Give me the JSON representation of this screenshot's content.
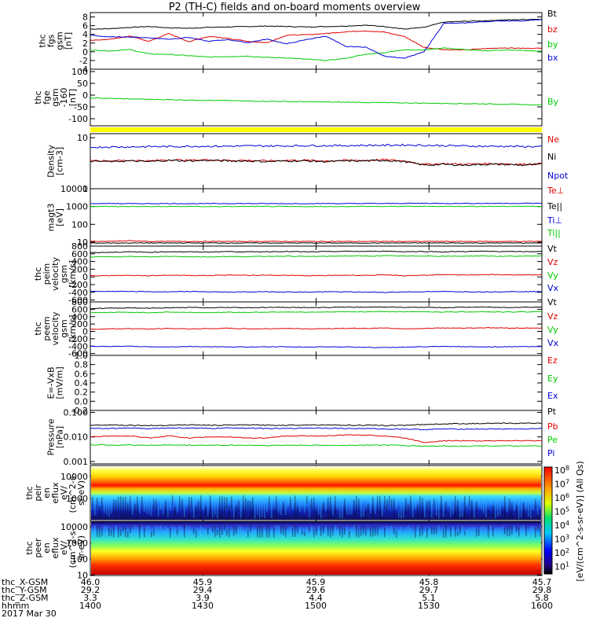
{
  "title": "P2 (TH-C) fields and on-board moments overview",
  "colors": {
    "black": "#000000",
    "red": "#e00000",
    "green": "#00cc00",
    "blue": "#0000d8",
    "yellow": "#ffff00"
  },
  "chart_data": [
    {
      "type": "line",
      "name": "fgs",
      "ylabel": [
        "thc",
        "fgs",
        "gsm",
        "[nT]"
      ],
      "ylim": [
        -4,
        9
      ],
      "yticks": [
        "8",
        "6",
        "4",
        "2",
        "0",
        "-2",
        "-4"
      ],
      "series": [
        {
          "name": "Bt",
          "color": "black",
          "values": [
            5.2,
            5.3,
            5.6,
            5.8,
            5.5,
            5.4,
            5.6,
            5.7,
            5.8,
            5.9,
            5.8,
            5.7,
            5.8,
            5.9,
            6.1,
            5.8,
            5.2,
            5.6,
            6.8,
            7.0,
            7.1,
            7.3,
            7.4,
            7.5
          ]
        },
        {
          "name": "bz",
          "color": "red",
          "values": [
            2.6,
            2.9,
            3.6,
            2.4,
            4.2,
            2.3,
            3.5,
            3.1,
            2.4,
            2.1,
            3.8,
            3.9,
            4.2,
            4.6,
            4.8,
            4.5,
            3.5,
            1.0,
            0.5,
            0.4,
            0.7,
            0.9,
            0.8,
            0.8
          ]
        },
        {
          "name": "by",
          "color": "green",
          "values": [
            0.4,
            0.2,
            0.5,
            -0.5,
            -0.6,
            -0.9,
            -1.2,
            -1.1,
            -1.0,
            -1.3,
            -1.4,
            -1.7,
            -2.0,
            -1.5,
            -0.6,
            -0.2,
            0.5,
            0.4,
            0.9,
            0.5,
            0.2,
            0.4,
            0.3,
            0.1
          ]
        },
        {
          "name": "bx",
          "color": "blue",
          "values": [
            3.8,
            3.4,
            3.4,
            3.2,
            2.9,
            3.3,
            2.4,
            2.8,
            2.1,
            2.9,
            1.8,
            2.8,
            3.6,
            1.2,
            1.1,
            -1.0,
            -1.5,
            0.0,
            6.5,
            6.6,
            6.9,
            7.1,
            7.1,
            7.4
          ]
        }
      ]
    },
    {
      "type": "line",
      "name": "fge_by",
      "ylabel": [
        "thc",
        "fge",
        "gsm",
        "-160",
        "[nT]"
      ],
      "ylim": [
        -130,
        110
      ],
      "yticks": [
        "100",
        "50",
        "0",
        "-50",
        "-100"
      ],
      "series": [
        {
          "name": "By",
          "color": "green",
          "values": [
            -12,
            -14,
            -16,
            -18,
            -19,
            -21,
            -22,
            -23,
            -25,
            -26,
            -27,
            -28,
            -29,
            -30,
            -31,
            -32,
            -33,
            -34,
            -35,
            -36,
            -37,
            -38,
            -40,
            -42
          ]
        }
      ]
    },
    {
      "type": "line",
      "name": "density",
      "scale": "log",
      "ylabel": [
        "Density",
        "[cm-3]"
      ],
      "ylim": [
        1,
        12
      ],
      "yticks": [
        "10",
        "1"
      ],
      "series": [
        {
          "name": "Ne",
          "color": "red",
          "values": [
            3.6,
            3.5,
            3.6,
            3.5,
            3.7,
            3.6,
            3.7,
            3.6,
            3.6,
            3.5,
            3.6,
            3.6,
            3.5,
            3.6,
            3.6,
            3.7,
            3.5,
            3.0,
            3.1,
            3.0,
            3.1,
            3.1,
            3.0,
            3.1
          ]
        },
        {
          "name": "Ni",
          "color": "black",
          "values": [
            3.5,
            3.4,
            3.5,
            3.4,
            3.6,
            3.5,
            3.6,
            3.5,
            3.5,
            3.4,
            3.5,
            3.5,
            3.4,
            3.5,
            3.5,
            3.6,
            3.4,
            2.9,
            3.0,
            2.9,
            3.0,
            3.0,
            2.9,
            3.0
          ]
        },
        {
          "name": "Npot",
          "color": "blue",
          "values": [
            6.5,
            6.6,
            6.6,
            6.7,
            6.7,
            6.8,
            6.8,
            6.8,
            6.9,
            6.9,
            6.9,
            7.0,
            7.0,
            7.0,
            7.1,
            7.1,
            7.2,
            7.1,
            7.0,
            6.9,
            6.8,
            6.8,
            6.7,
            6.7
          ]
        }
      ]
    },
    {
      "type": "line",
      "name": "temperature",
      "scale": "log",
      "ylabel": [
        "magt3",
        "[eV]"
      ],
      "ylim": [
        6,
        10000
      ],
      "yticks": [
        "10000",
        "1000",
        "100",
        "10"
      ],
      "series": [
        {
          "name": "Te⊥",
          "color": "red",
          "values": [
            11,
            11,
            12,
            11,
            11,
            11,
            11,
            11,
            11,
            11,
            11,
            11,
            11,
            11,
            11,
            11,
            11,
            11,
            11,
            11,
            11,
            11,
            11,
            11
          ]
        },
        {
          "name": "Te||",
          "color": "black",
          "values": [
            9,
            9,
            9,
            9,
            9,
            9,
            9,
            9,
            9,
            9,
            9,
            9,
            9,
            9,
            9,
            9,
            9,
            9,
            9,
            9,
            9,
            9,
            9,
            9
          ]
        },
        {
          "name": "Ti⊥",
          "color": "blue",
          "values": [
            1450,
            1480,
            1450,
            1460,
            1470,
            1450,
            1460,
            1480,
            1470,
            1460,
            1450,
            1460,
            1470,
            1460,
            1480,
            1470,
            1500,
            1510,
            1490,
            1500,
            1490,
            1500,
            1510,
            1500
          ]
        },
        {
          "name": "Ti||",
          "color": "green",
          "values": [
            1000,
            1010,
            1000,
            990,
            1000,
            1010,
            990,
            1000,
            1000,
            1010,
            1000,
            990,
            1000,
            1000,
            1010,
            1000,
            1020,
            1030,
            1010,
            1020,
            1010,
            1020,
            1030,
            1020
          ]
        }
      ]
    },
    {
      "type": "line",
      "name": "peim_velocity",
      "ylabel": [
        "thc",
        "peim",
        "velocity",
        "gsm",
        "[km/s]"
      ],
      "ylim": [
        -650,
        800
      ],
      "yticks": [
        "800",
        "600",
        "400",
        "200",
        "0",
        "-200",
        "-400",
        "-600"
      ],
      "series": [
        {
          "name": "Vt",
          "color": "black",
          "values": [
            630,
            640,
            650,
            640,
            655,
            650,
            645,
            660,
            650,
            655,
            660,
            650,
            655,
            665,
            660,
            670,
            655,
            660,
            650,
            660,
            665,
            660,
            655,
            660
          ]
        },
        {
          "name": "Vz",
          "color": "red",
          "values": [
            30,
            35,
            40,
            30,
            45,
            40,
            35,
            50,
            40,
            45,
            40,
            30,
            35,
            45,
            40,
            50,
            30,
            45,
            55,
            50,
            60,
            55,
            50,
            55
          ]
        },
        {
          "name": "Vy",
          "color": "green",
          "values": [
            520,
            525,
            530,
            520,
            535,
            525,
            520,
            530,
            525,
            535,
            540,
            530,
            535,
            545,
            540,
            550,
            540,
            545,
            535,
            540,
            545,
            535,
            540,
            545
          ]
        },
        {
          "name": "Vx",
          "color": "blue",
          "values": [
            -370,
            -380,
            -375,
            -385,
            -390,
            -380,
            -385,
            -395,
            -390,
            -385,
            -390,
            -395,
            -385,
            -390,
            -395,
            -400,
            -390,
            -385,
            -380,
            -385,
            -390,
            -385,
            -380,
            -385
          ]
        }
      ]
    },
    {
      "type": "line",
      "name": "peem_velocity",
      "ylabel": [
        "thc",
        "peem",
        "velocity",
        "gsm",
        "[km/s]"
      ],
      "ylim": [
        -650,
        800
      ],
      "yticks": [
        "800",
        "600",
        "400",
        "200",
        "0",
        "-200",
        "-400",
        "-600"
      ],
      "series": [
        {
          "name": "Vt",
          "color": "black",
          "values": [
            620,
            630,
            640,
            630,
            640,
            650,
            640,
            650,
            645,
            650,
            655,
            645,
            650,
            660,
            655,
            665,
            650,
            655,
            645,
            655,
            660,
            650,
            655,
            660
          ]
        },
        {
          "name": "Vz",
          "color": "red",
          "values": [
            60,
            70,
            75,
            65,
            80,
            70,
            75,
            85,
            70,
            75,
            80,
            70,
            75,
            85,
            80,
            90,
            70,
            80,
            95,
            90,
            100,
            95,
            90,
            95
          ]
        },
        {
          "name": "Vy",
          "color": "green",
          "values": [
            510,
            515,
            520,
            510,
            525,
            515,
            510,
            520,
            515,
            525,
            530,
            520,
            525,
            535,
            530,
            540,
            530,
            535,
            525,
            530,
            535,
            525,
            530,
            535
          ]
        },
        {
          "name": "Vx",
          "color": "blue",
          "values": [
            -400,
            -410,
            -405,
            -415,
            -420,
            -410,
            -415,
            -425,
            -420,
            -415,
            -420,
            -425,
            -415,
            -420,
            -430,
            -440,
            -425,
            -415,
            -410,
            -415,
            -420,
            -415,
            -410,
            -415
          ]
        }
      ]
    },
    {
      "type": "line",
      "name": "e_field",
      "ylabel": [
        "E=-VxB",
        "[mV/m]"
      ],
      "ylim": [
        -0.2,
        1.0
      ],
      "yticks": [
        "1.0",
        "0.8",
        "0.6",
        "0.4",
        "0.2",
        "0.0",
        "-0.2"
      ],
      "series": [
        {
          "name": "Ez",
          "color": "red",
          "values": []
        },
        {
          "name": "Ey",
          "color": "green",
          "values": []
        },
        {
          "name": "Ex",
          "color": "blue",
          "values": []
        }
      ]
    },
    {
      "type": "line",
      "name": "pressure",
      "scale": "log",
      "ylabel": [
        "Pressure",
        "[nPa]"
      ],
      "ylim": [
        0.0008,
        0.12
      ],
      "yticks": [
        "0.100",
        "0.010",
        "0.001"
      ],
      "series": [
        {
          "name": "Pt",
          "color": "black",
          "values": [
            0.03,
            0.031,
            0.03,
            0.029,
            0.03,
            0.031,
            0.03,
            0.03,
            0.031,
            0.03,
            0.03,
            0.031,
            0.031,
            0.03,
            0.03,
            0.029,
            0.03,
            0.032,
            0.034,
            0.035,
            0.035,
            0.036,
            0.036,
            0.037
          ]
        },
        {
          "name": "Pb",
          "color": "red",
          "values": [
            0.01,
            0.011,
            0.011,
            0.009,
            0.011,
            0.009,
            0.01,
            0.01,
            0.009,
            0.009,
            0.011,
            0.011,
            0.011,
            0.012,
            0.012,
            0.011,
            0.009,
            0.006,
            0.007,
            0.007,
            0.007,
            0.007,
            0.007,
            0.007
          ]
        },
        {
          "name": "Pe",
          "color": "green",
          "values": [
            0.0048,
            0.0047,
            0.0047,
            0.0046,
            0.0047,
            0.0046,
            0.0046,
            0.0046,
            0.0046,
            0.0045,
            0.0046,
            0.0046,
            0.0045,
            0.0046,
            0.0046,
            0.0047,
            0.0045,
            0.0042,
            0.0043,
            0.0042,
            0.0043,
            0.0043,
            0.0042,
            0.0043
          ]
        },
        {
          "name": "Pi",
          "color": "blue",
          "values": [
            0.022,
            0.022,
            0.023,
            0.022,
            0.023,
            0.023,
            0.022,
            0.023,
            0.023,
            0.022,
            0.022,
            0.023,
            0.023,
            0.022,
            0.022,
            0.021,
            0.021,
            0.02,
            0.021,
            0.021,
            0.021,
            0.021,
            0.021,
            0.022
          ]
        }
      ]
    },
    {
      "type": "heatmap",
      "name": "peir_en_eflux",
      "ylabel": [
        "thc",
        "peir",
        "en",
        "eflux",
        "eV/",
        "(cm^2-s-",
        "sr-eV)"
      ],
      "yticks": [
        "10000",
        "1000"
      ],
      "scale": "log"
    },
    {
      "type": "heatmap",
      "name": "peer_en_eflux",
      "ylabel": [
        "thc",
        "peer",
        "en",
        "eflux",
        "eV/",
        "(cm^2-s-",
        "sr-eV)"
      ],
      "yticks": [
        "10000",
        "1000",
        "100",
        "10"
      ],
      "scale": "log"
    }
  ],
  "colorbar": {
    "ticks": [
      "10^8",
      "10^7",
      "10^6",
      "10^5",
      "10^4",
      "10^3",
      "10^2",
      "10^1"
    ],
    "label": "[eV/(cm^2-s-sr-eV)] (All Qs)"
  },
  "xaxis": {
    "rows": [
      {
        "label": "thc_X-GSM",
        "values": [
          "46.0",
          "45.9",
          "45.9",
          "45.8",
          "45.7"
        ]
      },
      {
        "label": "thc_Y-GSM",
        "values": [
          "29.2",
          "29.4",
          "29.6",
          "29.7",
          "29.8"
        ]
      },
      {
        "label": "thc_Z-GSM",
        "values": [
          "3.3",
          "3.9",
          "4.4",
          "5.1",
          "5.8"
        ]
      },
      {
        "label": "hhmm",
        "values": [
          "1400",
          "1430",
          "1500",
          "1530",
          "1600"
        ]
      }
    ],
    "date": "2017 Mar 30"
  }
}
